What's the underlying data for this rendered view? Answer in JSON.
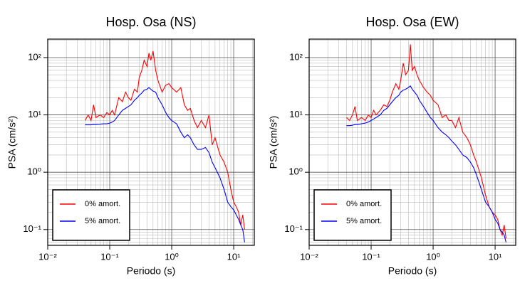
{
  "chart_data": [
    {
      "type": "line",
      "title": "Hosp. Osa (NS)",
      "xlabel": "Periodo (s)",
      "ylabel": "PSA (cm/s²)",
      "log_x": true,
      "log_y": true,
      "grid": true,
      "legend": "lower left",
      "xlim": [
        0.01,
        21.5
      ],
      "ylim": [
        0.053,
        210
      ],
      "xticks": [
        {
          "value": 0.01,
          "label": "10⁻²"
        },
        {
          "value": 0.1,
          "label": "10⁻¹"
        },
        {
          "value": 1,
          "label": "10⁰"
        },
        {
          "value": 10,
          "label": "10¹"
        }
      ],
      "yticks": [
        {
          "value": 0.1,
          "label": "10⁻¹"
        },
        {
          "value": 1,
          "label": "10⁰"
        },
        {
          "value": 10,
          "label": "10¹"
        },
        {
          "value": 100,
          "label": "10²"
        }
      ],
      "x": [
        0.04,
        0.045,
        0.05,
        0.055,
        0.06,
        0.07,
        0.08,
        0.09,
        0.1,
        0.11,
        0.12,
        0.14,
        0.16,
        0.18,
        0.2,
        0.22,
        0.25,
        0.28,
        0.3,
        0.33,
        0.36,
        0.4,
        0.43,
        0.46,
        0.5,
        0.55,
        0.6,
        0.7,
        0.8,
        0.9,
        1.0,
        1.2,
        1.4,
        1.6,
        1.8,
        2.0,
        2.3,
        2.6,
        3.0,
        3.5,
        4.0,
        4.5,
        5,
        6,
        7,
        8,
        9,
        10,
        11,
        12,
        13,
        14,
        15
      ],
      "series": [
        {
          "name": "0% amort.",
          "color": "#ff0000",
          "values": [
            8,
            10,
            8,
            15,
            9,
            10,
            9,
            11,
            10,
            12,
            10,
            20,
            17,
            25,
            20,
            18,
            28,
            25,
            45,
            60,
            90,
            70,
            120,
            90,
            130,
            60,
            40,
            25,
            33,
            35,
            30,
            25,
            30,
            15,
            12,
            13,
            8,
            6,
            8,
            6,
            10,
            3,
            4,
            2,
            1.5,
            1.0,
            0.5,
            0.3,
            0.25,
            0.2,
            0.12,
            0.18,
            0.1
          ]
        },
        {
          "name": "5% amort.",
          "color": "#0000ff",
          "values": [
            6.7,
            6.7,
            6.7,
            6.8,
            6.8,
            6.9,
            7,
            7,
            7.2,
            7.5,
            8,
            10,
            12,
            13,
            14,
            15,
            18,
            20,
            22,
            24,
            27,
            28,
            30,
            28,
            26,
            25,
            20,
            15,
            11,
            9,
            8,
            7,
            5,
            4,
            4.5,
            4,
            3,
            2.5,
            2.5,
            2.7,
            2.2,
            1.5,
            1.2,
            0.8,
            0.5,
            0.3,
            0.25,
            0.22,
            0.18,
            0.15,
            0.12,
            0.1,
            0.06
          ]
        }
      ]
    },
    {
      "type": "line",
      "title": "Hosp. Osa (EW)",
      "xlabel": "Periodo (s)",
      "ylabel": "PSA (cm/s²)",
      "log_x": true,
      "log_y": true,
      "grid": true,
      "legend": "lower left",
      "xlim": [
        0.01,
        21.5
      ],
      "ylim": [
        0.053,
        210
      ],
      "xticks": [
        {
          "value": 0.01,
          "label": "10⁻²"
        },
        {
          "value": 0.1,
          "label": "10⁻¹"
        },
        {
          "value": 1,
          "label": "10⁰"
        },
        {
          "value": 10,
          "label": "10¹"
        }
      ],
      "yticks": [
        {
          "value": 0.1,
          "label": "10⁻¹"
        },
        {
          "value": 1,
          "label": "10⁰"
        },
        {
          "value": 10,
          "label": "10¹"
        },
        {
          "value": 100,
          "label": "10²"
        }
      ],
      "x": [
        0.04,
        0.045,
        0.05,
        0.055,
        0.06,
        0.07,
        0.08,
        0.09,
        0.1,
        0.11,
        0.12,
        0.14,
        0.16,
        0.18,
        0.2,
        0.22,
        0.25,
        0.28,
        0.3,
        0.33,
        0.36,
        0.4,
        0.43,
        0.46,
        0.5,
        0.55,
        0.6,
        0.7,
        0.8,
        0.9,
        1.0,
        1.2,
        1.4,
        1.6,
        1.8,
        2.0,
        2.3,
        2.6,
        3.0,
        3.5,
        4.0,
        4.5,
        5,
        6,
        7,
        8,
        9,
        10,
        11,
        12,
        13,
        14,
        15
      ],
      "series": [
        {
          "name": "0% amort.",
          "color": "#ff0000",
          "values": [
            9,
            8,
            10,
            14,
            8,
            9,
            8,
            10,
            9,
            12,
            10,
            12,
            15,
            14,
            18,
            25,
            35,
            28,
            40,
            80,
            50,
            60,
            170,
            60,
            70,
            50,
            40,
            30,
            25,
            22,
            18,
            15,
            9,
            10,
            8,
            8,
            6,
            9,
            5,
            4,
            3,
            2,
            1.5,
            0.8,
            0.4,
            0.25,
            0.2,
            0.18,
            0.15,
            0.1,
            0.08,
            0.12,
            0.07
          ]
        },
        {
          "name": "5% amort.",
          "color": "#0000ff",
          "values": [
            6.5,
            6.5,
            6.6,
            6.8,
            6.8,
            7,
            7.2,
            7.5,
            8,
            8.5,
            9,
            10,
            12,
            13,
            15,
            17,
            20,
            22,
            25,
            27,
            28,
            30,
            32,
            28,
            25,
            22,
            18,
            14,
            11,
            9,
            8,
            6,
            5,
            4.5,
            4,
            3.5,
            3,
            2.5,
            2,
            1.8,
            1.5,
            1.2,
            0.9,
            0.5,
            0.3,
            0.25,
            0.2,
            0.15,
            0.13,
            0.1,
            0.09,
            0.08,
            0.06
          ]
        }
      ]
    }
  ]
}
